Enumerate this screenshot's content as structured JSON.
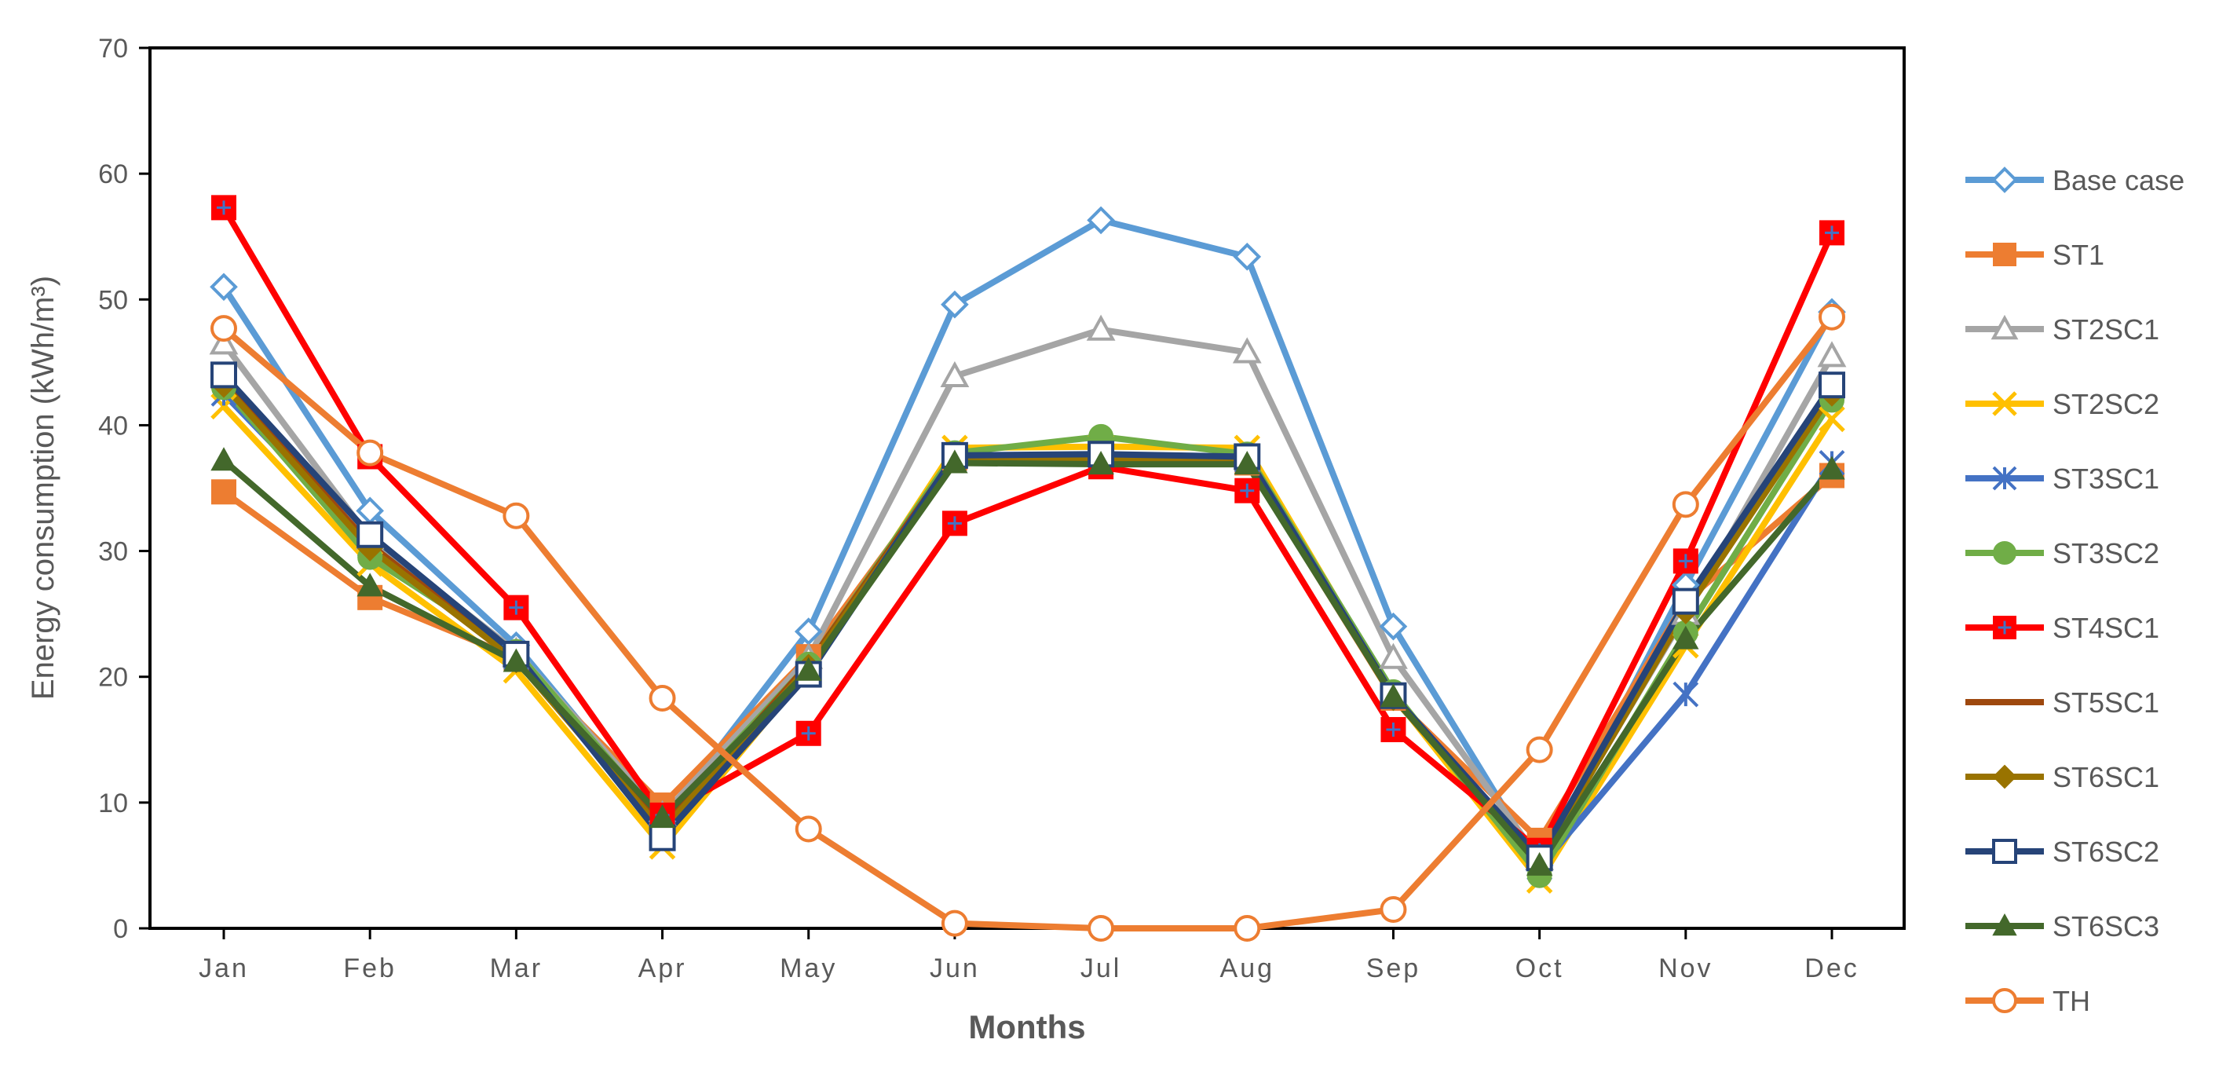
{
  "chart_data": {
    "type": "line",
    "title": "",
    "xlabel": "Months",
    "ylabel": "Energy consumption (kWh/m³)",
    "ylim": [
      0,
      70
    ],
    "yticks": [
      0,
      10,
      20,
      30,
      40,
      50,
      60,
      70
    ],
    "categories": [
      "Jan",
      "Feb",
      "Mar",
      "Apr",
      "May",
      "Jun",
      "Jul",
      "Aug",
      "Sep",
      "Oct",
      "Nov",
      "Dec"
    ],
    "grid": false,
    "legend_position": "right",
    "series": [
      {
        "name": "Base case",
        "color": "#5B9BD5",
        "marker": "diamond-open",
        "values": [
          51.0,
          33.2,
          22.5,
          8.5,
          23.6,
          49.6,
          56.3,
          53.4,
          24.0,
          5.0,
          27.3,
          49.0
        ]
      },
      {
        "name": "ST1",
        "color": "#ED7D31",
        "marker": "square-filled",
        "values": [
          34.7,
          26.3,
          21.5,
          9.8,
          21.6,
          37.4,
          37.2,
          37.0,
          18.3,
          7.0,
          26.0,
          36.0
        ]
      },
      {
        "name": "ST2SC1",
        "color": "#A5A5A5",
        "marker": "triangle-open",
        "values": [
          46.5,
          31.0,
          22.0,
          9.0,
          21.5,
          43.9,
          47.6,
          45.8,
          21.5,
          5.5,
          25.0,
          45.5
        ]
      },
      {
        "name": "ST2SC2",
        "color": "#FFC000",
        "marker": "x",
        "values": [
          41.5,
          29.0,
          20.5,
          6.5,
          20.5,
          38.2,
          38.3,
          38.2,
          18.5,
          3.8,
          22.5,
          40.5
        ]
      },
      {
        "name": "ST3SC1",
        "color": "#4472C4",
        "marker": "star",
        "values": [
          42.5,
          30.5,
          21.5,
          7.5,
          20.5,
          37.5,
          37.0,
          37.2,
          18.5,
          4.8,
          18.6,
          37.0
        ]
      },
      {
        "name": "ST3SC2",
        "color": "#70AD47",
        "marker": "circle-filled",
        "values": [
          43.0,
          29.5,
          22.0,
          8.5,
          21.0,
          37.8,
          39.1,
          37.7,
          18.8,
          4.2,
          23.5,
          42.0
        ]
      },
      {
        "name": "ST4SC1",
        "color": "#FF0000",
        "marker": "square-cross",
        "values": [
          57.3,
          37.5,
          25.5,
          9.0,
          15.5,
          32.2,
          36.7,
          34.8,
          15.8,
          6.2,
          29.2,
          55.3
        ]
      },
      {
        "name": "ST5SC1",
        "color": "#9E480E",
        "marker": "dash",
        "values": [
          43.5,
          30.5,
          21.5,
          8.0,
          21.0,
          37.5,
          37.5,
          37.5,
          18.5,
          5.5,
          25.5,
          43.0
        ]
      },
      {
        "name": "ST6SC1",
        "color": "#997300",
        "marker": "diamond-filled",
        "values": [
          43.2,
          30.2,
          21.3,
          7.8,
          20.8,
          37.3,
          37.3,
          37.3,
          18.3,
          5.3,
          25.2,
          42.5
        ]
      },
      {
        "name": "ST6SC2",
        "color": "#264478",
        "marker": "square-open",
        "values": [
          44.0,
          31.3,
          21.8,
          7.2,
          20.2,
          37.6,
          37.7,
          37.5,
          18.5,
          5.6,
          26.0,
          43.2
        ]
      },
      {
        "name": "ST6SC3",
        "color": "#43682B",
        "marker": "triangle-filled",
        "values": [
          37.2,
          27.2,
          21.2,
          8.8,
          20.5,
          37.0,
          36.9,
          36.9,
          18.4,
          5.0,
          23.0,
          36.5
        ]
      },
      {
        "name": "TH",
        "color": "#ED7D31",
        "marker": "circle-open",
        "values": [
          47.7,
          37.8,
          32.8,
          18.3,
          7.9,
          0.4,
          0.0,
          0.0,
          1.5,
          14.2,
          33.7,
          48.6
        ]
      }
    ]
  }
}
